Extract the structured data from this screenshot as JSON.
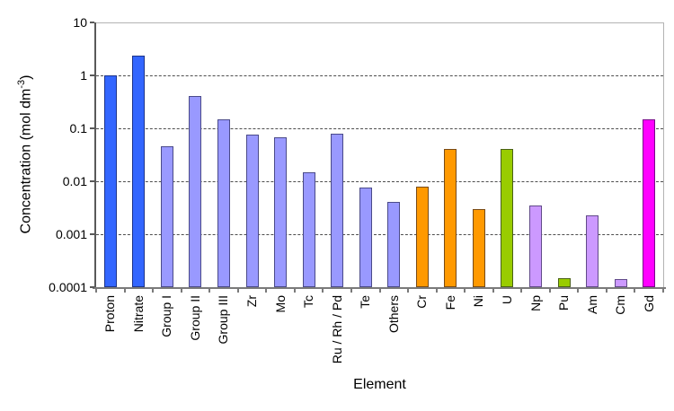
{
  "chart_data": {
    "type": "bar",
    "title": "",
    "xlabel": "Element",
    "ylabel": "Concentration (mol dm -3)",
    "ylabel_parts": {
      "main": "Concentration (mol dm",
      "sup": "-3",
      "end": ")"
    },
    "y_scale": "log",
    "ylim": [
      0.0001,
      10
    ],
    "grid": "horizontal-dashed",
    "legend": "none",
    "y_ticks": [
      {
        "value": 10,
        "label": "10"
      },
      {
        "value": 1,
        "label": "1"
      },
      {
        "value": 0.1,
        "label": "0.1"
      },
      {
        "value": 0.01,
        "label": "0.01"
      },
      {
        "value": 0.001,
        "label": "0.001"
      },
      {
        "value": 0.0001,
        "label": "0.0001"
      }
    ],
    "categories": [
      "Proton",
      "Nitrate",
      "Group I",
      "Group II",
      "Group III",
      "Zr",
      "Mo",
      "Tc",
      "Ru / Rh / Pd",
      "Te",
      "Others",
      "Cr",
      "Fe",
      "Ni",
      "U",
      "Np",
      "Pu",
      "Am",
      "Cm",
      "Gd"
    ],
    "values": [
      1.0,
      2.4,
      0.045,
      0.4,
      0.15,
      0.075,
      0.068,
      0.015,
      0.08,
      0.0075,
      0.004,
      0.008,
      0.04,
      0.003,
      0.04,
      0.0035,
      0.00015,
      0.0023,
      0.00014,
      0.15
    ],
    "bar_colors": [
      "#3366FF",
      "#3366FF",
      "#9999FF",
      "#9999FF",
      "#9999FF",
      "#9999FF",
      "#9999FF",
      "#9999FF",
      "#9999FF",
      "#9999FF",
      "#9999FF",
      "#FF9900",
      "#FF9900",
      "#FF9900",
      "#99CC00",
      "#CC99FF",
      "#99CC00",
      "#CC99FF",
      "#CC99FF",
      "#FF00FF"
    ],
    "colors": {
      "blue": "#3366FF",
      "periwinkle": "#9999FF",
      "orange": "#FF9900",
      "lime": "#99CC00",
      "lilac": "#CC99FF",
      "magenta": "#FF00FF",
      "gridline": "#4d4d4d",
      "plot_border": "#b3b3b3",
      "axis": "#7a7a7a",
      "text": "#000000"
    }
  }
}
